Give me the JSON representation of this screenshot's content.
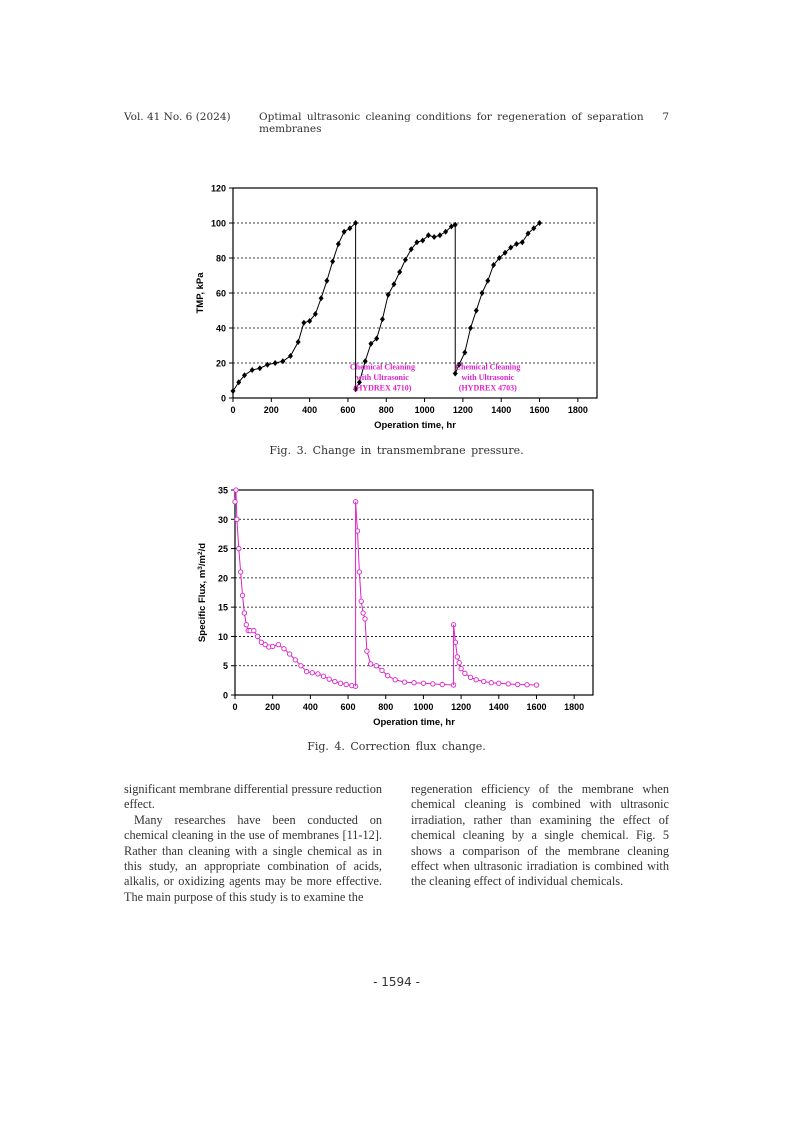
{
  "header": {
    "volume": "Vol. 41 No. 6 (2024)",
    "title": "Optimal ultrasonic cleaning conditions for regeneration of separation membranes",
    "page": "7"
  },
  "figures": {
    "fig3_caption": "Fig. 3. Change in transmembrane pressure.",
    "fig4_caption": "Fig. 4. Correction flux change."
  },
  "chart_data": [
    {
      "type": "line",
      "title": "",
      "xlabel": "Operation time, hr",
      "ylabel": "TMP, kPa",
      "xlim": [
        0,
        1900
      ],
      "ylim": [
        0,
        120
      ],
      "xticks": [
        0,
        200,
        400,
        600,
        800,
        1000,
        1200,
        1400,
        1600,
        1800
      ],
      "yticks": [
        0,
        20,
        40,
        60,
        80,
        100,
        120
      ],
      "grid": "horizontal dotted",
      "marker": "diamond",
      "color": "#000000",
      "annotation_color": "#dd22cc",
      "annotations": [
        {
          "lines": [
            "Chemical Cleaning",
            "with Ultrasonic",
            "(HYDREX 4710)"
          ],
          "x": 780,
          "y": 18
        },
        {
          "lines": [
            "Chemical Cleaning",
            "with Ultrasonic",
            "(HYDREX 4703)"
          ],
          "x": 1330,
          "y": 18
        }
      ],
      "series": [
        {
          "name": "TMP",
          "x": [
            0,
            30,
            60,
            100,
            140,
            180,
            220,
            260,
            300,
            340,
            370,
            400,
            430,
            460,
            490,
            520,
            550,
            580,
            610,
            640
          ],
          "y": [
            4,
            9,
            13,
            16,
            17,
            19,
            20,
            21,
            24,
            32,
            43,
            44,
            48,
            57,
            67,
            78,
            88,
            95,
            97,
            100
          ]
        },
        {
          "name": "TMP",
          "x": [
            640,
            660,
            690,
            720,
            750,
            780,
            810,
            840,
            870,
            900,
            930,
            960,
            990,
            1020,
            1050,
            1080,
            1110,
            1140,
            1160
          ],
          "y": [
            5,
            9,
            21,
            31,
            34,
            45,
            59,
            65,
            72,
            79,
            85,
            89,
            90,
            93,
            92,
            93,
            95,
            98,
            99
          ]
        },
        {
          "name": "TMP",
          "x": [
            1160,
            1180,
            1210,
            1240,
            1270,
            1300,
            1330,
            1360,
            1390,
            1420,
            1450,
            1480,
            1510,
            1540,
            1570,
            1600
          ],
          "y": [
            14,
            19,
            26,
            40,
            50,
            60,
            67,
            76,
            80,
            83,
            86,
            88,
            89,
            94,
            97,
            100
          ]
        }
      ],
      "drops": [
        [
          640,
          100,
          5
        ],
        [
          1160,
          99,
          14
        ]
      ]
    },
    {
      "type": "line",
      "title": "",
      "xlabel": "Operation time, hr",
      "ylabel_parts": [
        "Specific Flux, m",
        "3",
        "/m",
        "2",
        "/d"
      ],
      "xlim": [
        0,
        1900
      ],
      "ylim": [
        0,
        35
      ],
      "xticks": [
        0,
        200,
        400,
        600,
        800,
        1000,
        1200,
        1400,
        1600,
        1800
      ],
      "yticks": [
        0,
        5,
        10,
        15,
        20,
        25,
        30,
        35
      ],
      "grid": "horizontal dotted",
      "marker": "open-circle",
      "color": "#dd22cc",
      "series": [
        {
          "name": "Specific Flux",
          "x": [
            0,
            5,
            10,
            20,
            30,
            40,
            50,
            60,
            70,
            80,
            100,
            120,
            140,
            160,
            180,
            200,
            230,
            260,
            290,
            320,
            350,
            380,
            410,
            440,
            470,
            500,
            530,
            560,
            590,
            620,
            640
          ],
          "y": [
            33,
            35,
            30,
            25,
            21,
            17,
            14,
            12,
            11,
            11,
            11,
            10,
            9,
            8.6,
            8.2,
            8.3,
            8.6,
            7.9,
            7,
            6,
            5,
            4,
            3.8,
            3.6,
            3.2,
            2.7,
            2.3,
            2,
            1.8,
            1.6,
            1.5
          ]
        },
        {
          "name": "Specific Flux",
          "x": [
            640,
            650,
            660,
            670,
            680,
            690,
            700,
            720,
            750,
            780,
            810,
            850,
            900,
            950,
            1000,
            1050,
            1100,
            1160
          ],
          "y": [
            33,
            28,
            21,
            16,
            14,
            13,
            7.5,
            5.3,
            5,
            4.2,
            3.3,
            2.6,
            2.2,
            2.1,
            2,
            1.9,
            1.8,
            1.7
          ]
        },
        {
          "name": "Specific Flux",
          "x": [
            1160,
            1170,
            1180,
            1190,
            1200,
            1220,
            1250,
            1280,
            1320,
            1360,
            1400,
            1450,
            1500,
            1550,
            1600
          ],
          "y": [
            12,
            9,
            6.5,
            5.5,
            4.5,
            3.7,
            3,
            2.6,
            2.3,
            2.1,
            2,
            1.9,
            1.8,
            1.75,
            1.7
          ]
        }
      ],
      "drops": [
        [
          640,
          1.5,
          33
        ],
        [
          1160,
          1.7,
          12
        ]
      ]
    }
  ],
  "body": {
    "left_col": [
      "significant membrane differential pressure reduction effect.",
      "Many researches have been conducted on chemical cleaning in the use of membranes [11-12]. Rather than cleaning with a single chemical as in this study, an appropriate combination of acids, alkalis, or oxidizing agents may be more effective. The main purpose of this study is to examine the"
    ],
    "right_col": [
      "regeneration efficiency of the membrane when chemical cleaning is combined with ultrasonic irradiation, rather than examining the effect of chemical cleaning by a single chemical. Fig. 5 shows a comparison of the membrane cleaning effect when ultrasonic irradiation is combined with the cleaning effect of individual chemicals."
    ]
  },
  "footer": {
    "page_number": "- 1594 -"
  }
}
